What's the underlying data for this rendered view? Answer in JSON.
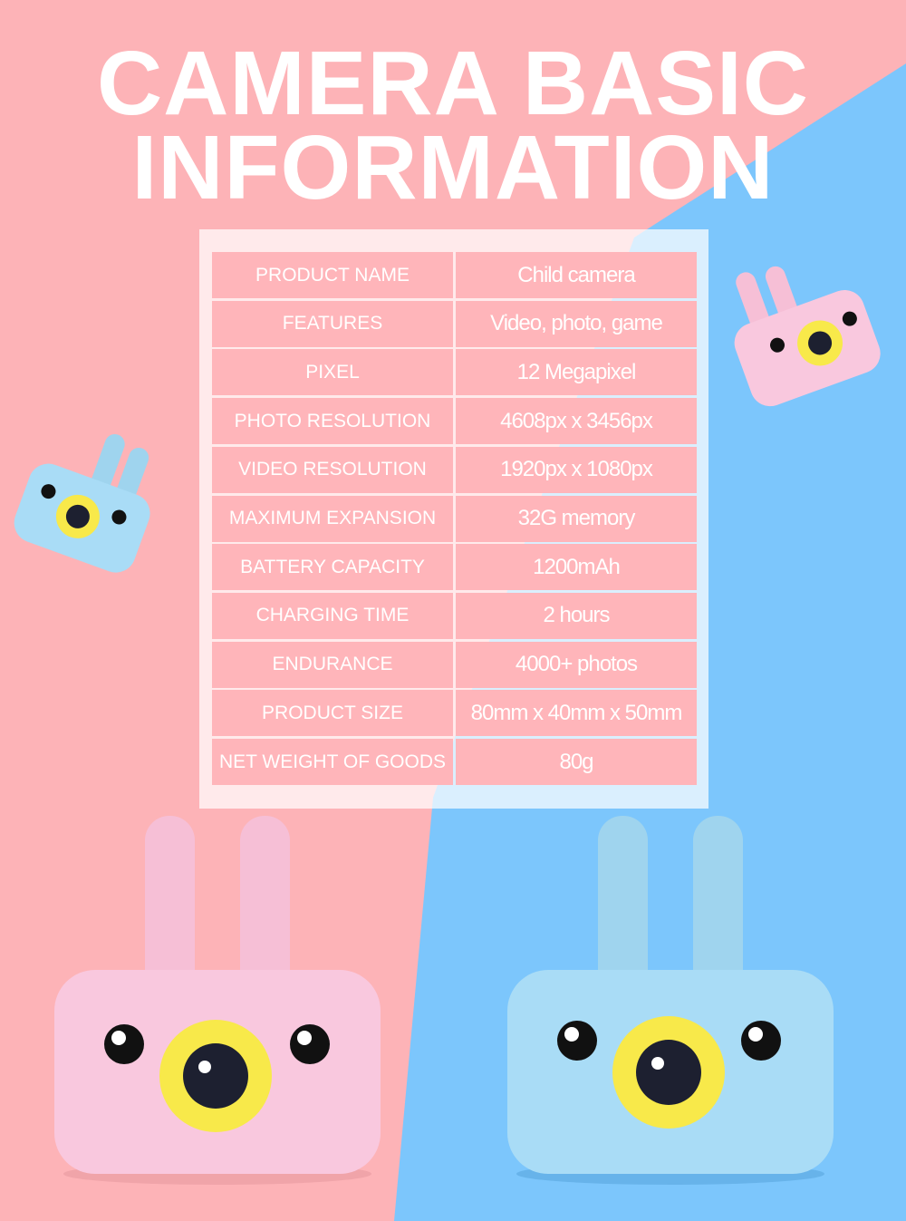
{
  "title": {
    "line1": "CAMERA BASIC",
    "line2": "INFORMATION"
  },
  "colors": {
    "pink_bg": "#fdb3b7",
    "blue_bg": "#7cc6fc",
    "cell": "#ffb5ba",
    "pink_camera": "#f9c8de",
    "blue_camera": "#a9dcf6",
    "lens_ring": "#f8e94a"
  },
  "specs": [
    {
      "label": "PRODUCT NAME",
      "value": "Child camera"
    },
    {
      "label": "FEATURES",
      "value": "Video, photo, game"
    },
    {
      "label": "PIXEL",
      "value": "12 Megapixel"
    },
    {
      "label": "PHOTO RESOLUTION",
      "value": "4608px x 3456px"
    },
    {
      "label": "VIDEO RESOLUTION",
      "value": "1920px x 1080px"
    },
    {
      "label": "MAXIMUM EXPANSION",
      "value": "32G memory"
    },
    {
      "label": "BATTERY CAPACITY",
      "value": "1200mAh"
    },
    {
      "label": "CHARGING TIME",
      "value": "2 hours"
    },
    {
      "label": "ENDURANCE",
      "value": "4000+ photos"
    },
    {
      "label": "PRODUCT SIZE",
      "value": "80mm x 40mm x 50mm"
    },
    {
      "label": "NET WEIGHT OF GOODS",
      "value": "80g"
    }
  ]
}
